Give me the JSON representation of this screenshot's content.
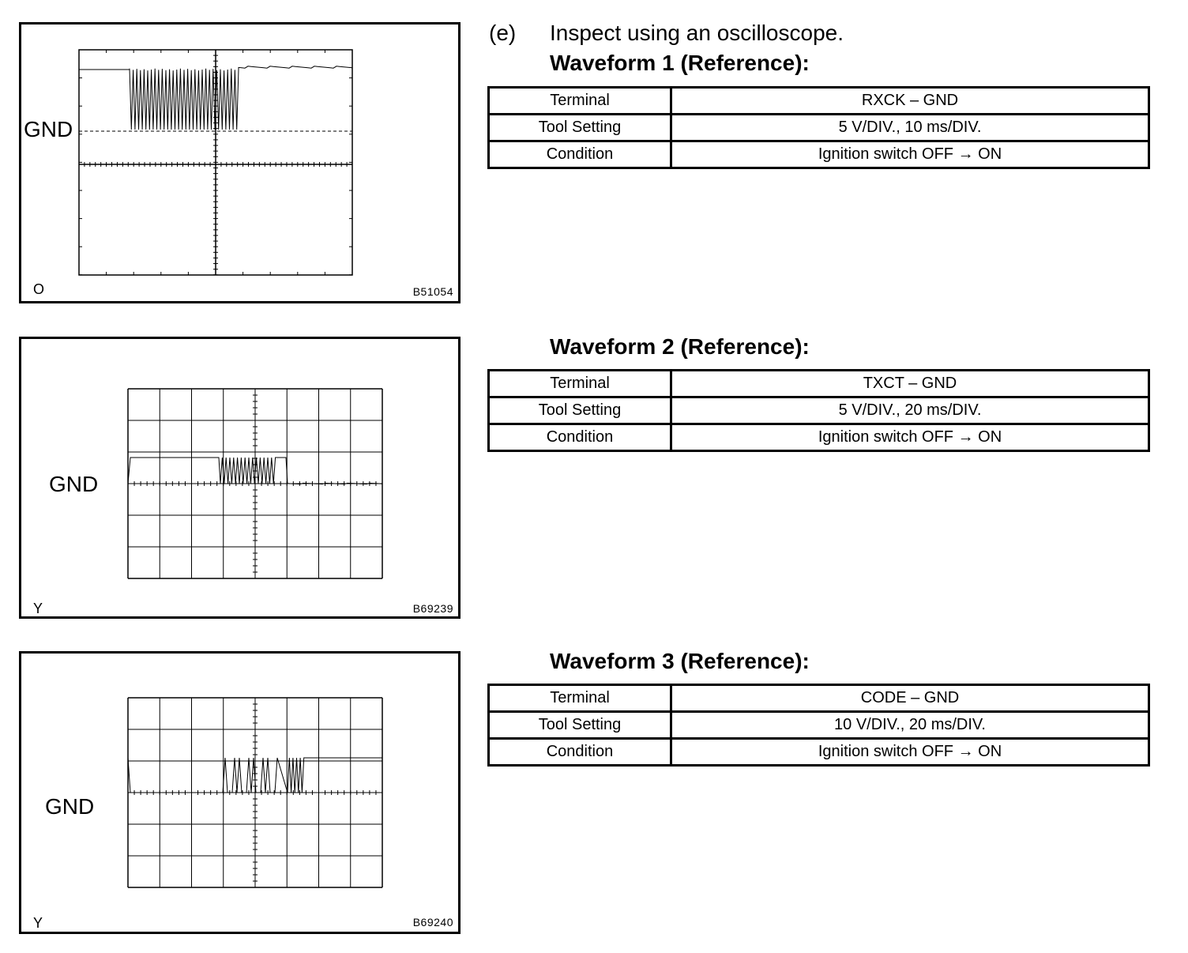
{
  "step": {
    "letter": "(e)",
    "text": "Inspect using an oscilloscope."
  },
  "waveforms": [
    {
      "title": "Waveform 1 (Reference):",
      "figure": {
        "level_label": "GND",
        "corner_label": "O",
        "code": "B51054"
      },
      "rows": [
        {
          "key": "Terminal",
          "value": "RXCK – GND"
        },
        {
          "key": "Tool Setting",
          "value": "5 V/DIV., 10 ms/DIV."
        },
        {
          "key": "Condition",
          "value": "Ignition switch OFF → ON"
        }
      ]
    },
    {
      "title": "Waveform 2 (Reference):",
      "figure": {
        "level_label": "GND",
        "corner_label": "Y",
        "code": "B69239"
      },
      "rows": [
        {
          "key": "Terminal",
          "value": "TXCT – GND"
        },
        {
          "key": "Tool Setting",
          "value": "5 V/DIV., 20 ms/DIV."
        },
        {
          "key": "Condition",
          "value": "Ignition switch OFF → ON"
        }
      ]
    },
    {
      "title": "Waveform 3 (Reference):",
      "figure": {
        "level_label": "GND",
        "corner_label": "Y",
        "code": "B69240"
      },
      "rows": [
        {
          "key": "Terminal",
          "value": "CODE – GND"
        },
        {
          "key": "Tool Setting",
          "value": "10 V/DIV., 20 ms/DIV."
        },
        {
          "key": "Condition",
          "value": "Ignition switch OFF → ON"
        }
      ]
    }
  ]
}
